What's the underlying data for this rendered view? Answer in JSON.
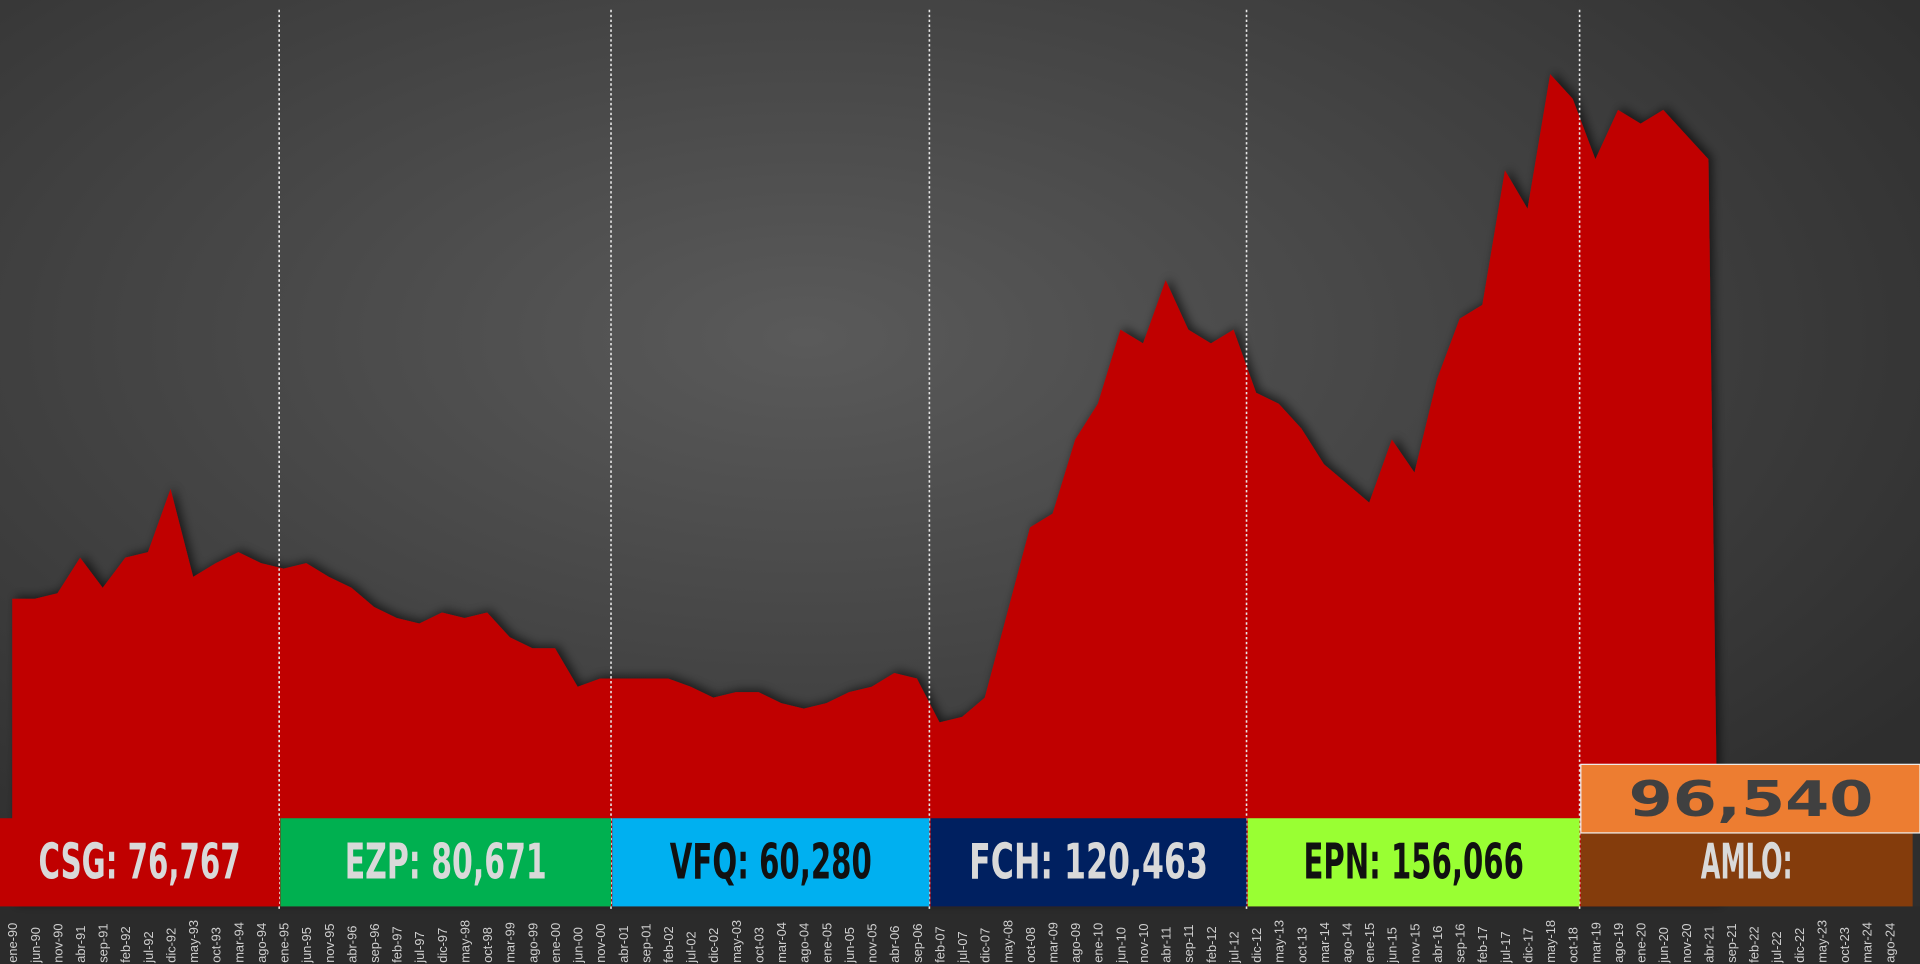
{
  "chart_data": {
    "type": "area",
    "color": "#c00000",
    "categories": [
      "ene-90",
      "jun-90",
      "nov-90",
      "abr-91",
      "sep-91",
      "feb-92",
      "jul-92",
      "dic-92",
      "may-93",
      "oct-93",
      "mar-94",
      "ago-94",
      "ene-95",
      "jun-95",
      "nov-95",
      "abr-96",
      "sep-96",
      "feb-97",
      "jul-97",
      "dic-97",
      "may-98",
      "oct-98",
      "mar-99",
      "ago-99",
      "ene-00",
      "jun-00",
      "nov-00",
      "abr-01",
      "sep-01",
      "feb-02",
      "jul-02",
      "dic-02",
      "may-03",
      "oct-03",
      "mar-04",
      "ago-04",
      "ene-05",
      "jun-05",
      "nov-05",
      "abr-06",
      "sep-06",
      "feb-07",
      "jul-07",
      "dic-07",
      "may-08",
      "oct-08",
      "mar-09",
      "ago-09",
      "ene-10",
      "jun-10",
      "nov-10",
      "abr-11",
      "sep-11",
      "feb-12",
      "jul-12",
      "dic-12",
      "may-13",
      "oct-13",
      "mar-14",
      "ago-14",
      "ene-15",
      "jun-15",
      "nov-15",
      "abr-16",
      "sep-16",
      "feb-17",
      "jul-17",
      "dic-17",
      "may-18",
      "oct-18",
      "mar-19",
      "ago-19",
      "ene-20",
      "jun-20",
      "nov-20",
      "abr-21",
      "sep-21",
      "feb-22",
      "jul-22",
      "dic-22",
      "may-23",
      "oct-23",
      "mar-24",
      "ago-24"
    ],
    "values": [
      1120,
      1120,
      1140,
      1270,
      1160,
      1270,
      1290,
      1520,
      1200,
      1250,
      1290,
      1250,
      1230,
      1250,
      1200,
      1160,
      1090,
      1050,
      1030,
      1070,
      1050,
      1070,
      980,
      940,
      940,
      800,
      830,
      830,
      830,
      830,
      800,
      760,
      780,
      780,
      740,
      720,
      740,
      780,
      800,
      850,
      830,
      670,
      690,
      760,
      1070,
      1380,
      1430,
      1700,
      1830,
      2100,
      2050,
      2280,
      2100,
      2050,
      2100,
      1870,
      1830,
      1740,
      1610,
      1540,
      1470,
      1700,
      1580,
      1920,
      2140,
      2190,
      2680,
      2540,
      3030,
      2940,
      2720,
      2900,
      2850,
      2900,
      2810,
      2720,
      null,
      null,
      null,
      null,
      null,
      null,
      null,
      null
    ],
    "ylim": [
      0,
      3300
    ],
    "segments": [
      {
        "label": "CSG: 76,767",
        "color": "#c00000",
        "text_color": "#d9d9d9"
      },
      {
        "label": "EZP: 80,671",
        "color": "#00b050",
        "text_color": "#d9d9d9"
      },
      {
        "label": "VFQ: 60,280",
        "color": "#00b0f0",
        "text_color": "#111111"
      },
      {
        "label": "FCH:  120,463",
        "color": "#002060",
        "text_color": "#d9d9d9"
      },
      {
        "label": "EPN: 156,066",
        "color": "#99ff33",
        "text_color": "#111111"
      },
      {
        "label": "AMLO:",
        "color": "#843c0c",
        "text_color": "#d9d9d9"
      }
    ],
    "highlight": {
      "label": "96,540",
      "color": "#ed7d31",
      "text_color": "#404040"
    }
  }
}
